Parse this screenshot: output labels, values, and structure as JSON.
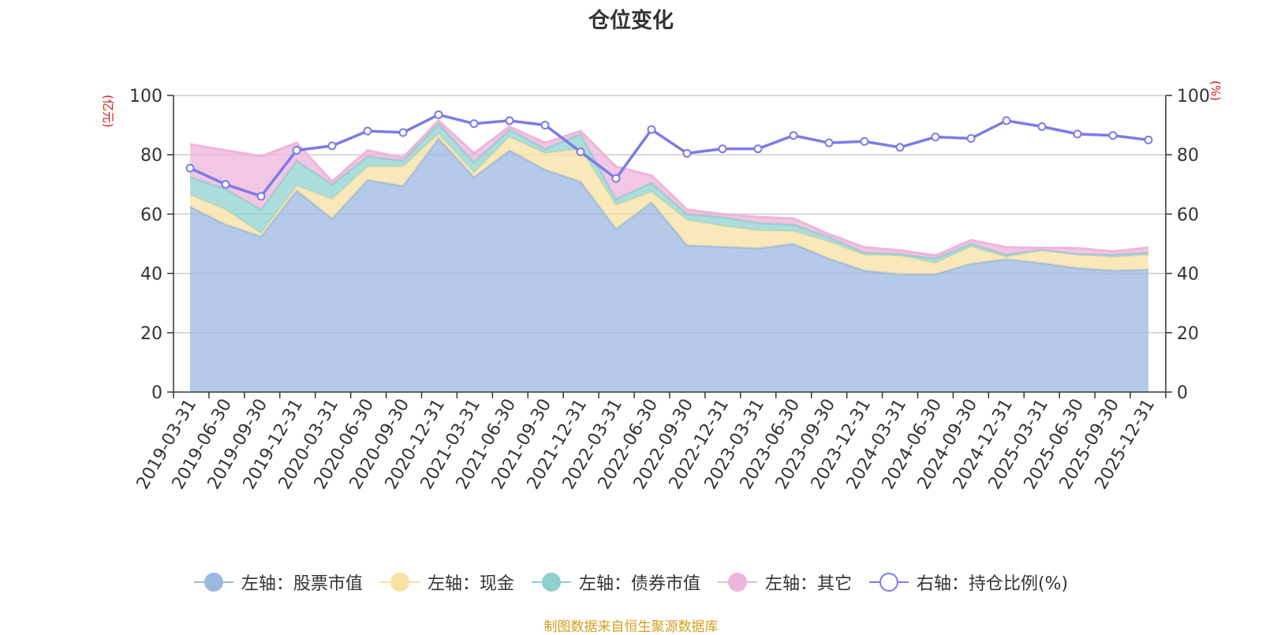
{
  "chart_data": {
    "type": "area",
    "title": "仓位变化",
    "left_axis_unit": "(亿元)",
    "right_axis_unit": "(%)",
    "left_ylim": [
      0,
      100
    ],
    "right_ylim": [
      0,
      100
    ],
    "left_ticks": [
      "0",
      "20",
      "40",
      "60",
      "80",
      "100"
    ],
    "right_ticks": [
      "0",
      "20",
      "40",
      "60",
      "80",
      "100"
    ],
    "stacked": true,
    "grid": true,
    "legend_position": "bottom",
    "categories": [
      "2019-03-31",
      "2019-06-30",
      "2019-09-30",
      "2019-12-31",
      "2020-03-31",
      "2020-06-30",
      "2020-09-30",
      "2020-12-31",
      "2021-03-31",
      "2021-06-30",
      "2021-09-30",
      "2021-12-31",
      "2022-03-31",
      "2022-06-30",
      "2022-09-30",
      "2022-12-31",
      "2023-03-31",
      "2023-06-30",
      "2023-09-30",
      "2023-12-31",
      "2024-03-31",
      "2024-06-30",
      "2024-09-30",
      "2024-12-31",
      "2025-03-31",
      "2025-06-30",
      "2025-09-30",
      "2025-12-31"
    ],
    "series": [
      {
        "name": "左轴：股票市值",
        "axis": "left",
        "kind": "area",
        "color": "#9bb8e0",
        "values": [
          62.5,
          56.5,
          52.5,
          68,
          58.5,
          71.5,
          69.5,
          85.5,
          72.5,
          81.5,
          75,
          71,
          55,
          64,
          49.5,
          49,
          48.5,
          50,
          45,
          41,
          39.8,
          39.8,
          43.3,
          44.8,
          43.5,
          41.8,
          41,
          41.3
        ]
      },
      {
        "name": "左轴：现金",
        "axis": "left",
        "kind": "area",
        "color": "#f7e2a3",
        "values": [
          4,
          5,
          1,
          1.5,
          6.5,
          4.5,
          6.5,
          1.5,
          1.5,
          4.5,
          5.5,
          11,
          8,
          3.5,
          8.5,
          7,
          6,
          4.2,
          5.7,
          5.2,
          6.2,
          3.7,
          5.7,
          0.7,
          4.5,
          4.7,
          4.5,
          4.9
        ]
      },
      {
        "name": "左轴：债券市值",
        "axis": "left",
        "kind": "area",
        "color": "#8fd1d1",
        "values": [
          6,
          7,
          8,
          8.5,
          5,
          3.5,
          2,
          3.5,
          3.5,
          2.5,
          1.5,
          5,
          2,
          3,
          2,
          3,
          2.5,
          2.3,
          1.5,
          0.8,
          0.5,
          1.5,
          1,
          0.8,
          0,
          0,
          0.8,
          0.8
        ]
      },
      {
        "name": "左轴：其它",
        "axis": "left",
        "kind": "area",
        "color": "#eeb4d9",
        "values": [
          11,
          13,
          18,
          6,
          1,
          2,
          1,
          1,
          3,
          1,
          2,
          1,
          11,
          2.5,
          1.5,
          1,
          2,
          2,
          1,
          1.8,
          1.3,
          1,
          1.2,
          2.5,
          0.6,
          2,
          1.1,
          1.7
        ]
      },
      {
        "name": "右轴：持仓比例(%)",
        "axis": "right",
        "kind": "line",
        "color": "#7b7be8",
        "values": [
          75.5,
          70,
          66,
          81.5,
          83,
          88,
          87.5,
          93.5,
          90.5,
          91.5,
          90,
          81,
          72,
          88.5,
          80.5,
          82,
          82,
          86.5,
          84,
          84.5,
          82.5,
          86,
          85.5,
          91.5,
          89.5,
          87,
          86.5,
          85
        ]
      }
    ]
  },
  "source_note": "制图数据来自恒生聚源数据库"
}
